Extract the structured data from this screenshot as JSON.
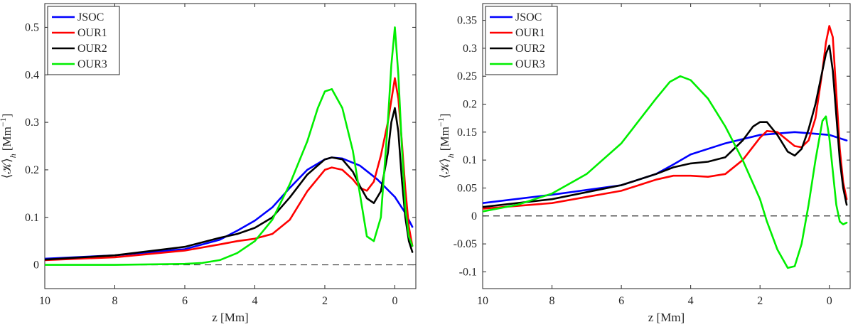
{
  "chart_data": [
    {
      "type": "line",
      "xlabel": "z [Mm]",
      "ylabel": "⟨𝒦⟩",
      "ylabel_sub": "h",
      "ylabel_unit": "[Mm",
      "ylabel_unit_exp": "−1",
      "ylabel_unit_close": "]",
      "xlim": [
        10,
        -0.6
      ],
      "ylim": [
        -0.05,
        0.55
      ],
      "xticks": [
        10,
        8,
        6,
        4,
        2,
        0
      ],
      "xtick_labels": [
        "10",
        "8",
        "6",
        "4",
        "2",
        "0"
      ],
      "yticks": [
        0,
        0.1,
        0.2,
        0.3,
        0.4,
        0.5
      ],
      "ytick_labels": [
        "0",
        "0.1",
        "0.2",
        "0.3",
        "0.4",
        "0.5"
      ],
      "zero_line": true,
      "legend_position": "top-left",
      "series": [
        {
          "name": "JSOC",
          "color": "#0000ff",
          "x": [
            10,
            8,
            6,
            5,
            4.5,
            4,
            3.5,
            3,
            2.5,
            2,
            1.8,
            1.5,
            1,
            0.5,
            0,
            -0.3,
            -0.5
          ],
          "y": [
            0.013,
            0.02,
            0.033,
            0.053,
            0.072,
            0.093,
            0.121,
            0.162,
            0.2,
            0.222,
            0.226,
            0.224,
            0.209,
            0.18,
            0.143,
            0.109,
            0.08
          ]
        },
        {
          "name": "OUR1",
          "color": "#ff0000",
          "x": [
            10,
            8,
            6,
            5,
            4.5,
            4,
            3.5,
            3,
            2.5,
            2,
            1.8,
            1.5,
            1.2,
            1,
            0.8,
            0.6,
            0.4,
            0.2,
            0,
            -0.1,
            -0.2,
            -0.3,
            -0.4,
            -0.5
          ],
          "y": [
            0.01,
            0.016,
            0.03,
            0.043,
            0.05,
            0.055,
            0.065,
            0.095,
            0.155,
            0.2,
            0.205,
            0.2,
            0.18,
            0.162,
            0.156,
            0.175,
            0.23,
            0.3,
            0.393,
            0.35,
            0.26,
            0.16,
            0.08,
            0.04
          ]
        },
        {
          "name": "OUR2",
          "color": "#000000",
          "x": [
            10,
            8,
            6,
            5,
            4.5,
            4,
            3.5,
            3,
            2.5,
            2,
            1.8,
            1.5,
            1.2,
            1,
            0.8,
            0.6,
            0.4,
            0.2,
            0.1,
            0,
            -0.1,
            -0.2,
            -0.3,
            -0.4,
            -0.5
          ],
          "y": [
            0.011,
            0.02,
            0.038,
            0.057,
            0.065,
            0.078,
            0.1,
            0.142,
            0.19,
            0.222,
            0.226,
            0.222,
            0.196,
            0.166,
            0.14,
            0.13,
            0.155,
            0.235,
            0.3,
            0.33,
            0.28,
            0.18,
            0.1,
            0.05,
            0.027
          ]
        },
        {
          "name": "OUR3",
          "color": "#00ee00",
          "x": [
            10,
            8,
            6,
            5.5,
            5,
            4.5,
            4,
            3.5,
            3,
            2.5,
            2.2,
            2,
            1.8,
            1.5,
            1.2,
            1,
            0.8,
            0.6,
            0.4,
            0.2,
            0.1,
            0,
            -0.1,
            -0.2,
            -0.3,
            -0.4,
            -0.5
          ],
          "y": [
            0,
            0,
            0.002,
            0.004,
            0.01,
            0.025,
            0.05,
            0.095,
            0.17,
            0.26,
            0.33,
            0.365,
            0.37,
            0.33,
            0.24,
            0.15,
            0.06,
            0.05,
            0.1,
            0.3,
            0.42,
            0.5,
            0.4,
            0.25,
            0.12,
            0.06,
            0.04
          ]
        }
      ]
    },
    {
      "type": "line",
      "xlabel": "z [Mm]",
      "ylabel": "⟨𝒦⟩",
      "ylabel_sub": "h",
      "ylabel_unit": "[Mm",
      "ylabel_unit_exp": "−1",
      "ylabel_unit_close": "]",
      "xlim": [
        10,
        -0.6
      ],
      "ylim": [
        -0.13,
        0.38
      ],
      "xticks": [
        10,
        8,
        6,
        4,
        2,
        0
      ],
      "xtick_labels": [
        "10",
        "8",
        "6",
        "4",
        "2",
        "0"
      ],
      "yticks": [
        -0.1,
        -0.05,
        0,
        0.05,
        0.1,
        0.15,
        0.2,
        0.25,
        0.3,
        0.35
      ],
      "ytick_labels": [
        "-0.1",
        "-0.05",
        "0",
        "0.05",
        "0.1",
        "0.15",
        "0.2",
        "0.25",
        "0.3",
        "0.35"
      ],
      "zero_line": true,
      "legend_position": "top-left",
      "series": [
        {
          "name": "JSOC",
          "color": "#0000ff",
          "x": [
            10,
            8,
            6,
            5,
            4.5,
            4,
            3,
            2,
            1,
            0,
            -0.5
          ],
          "y": [
            0.023,
            0.038,
            0.055,
            0.075,
            0.092,
            0.11,
            0.13,
            0.145,
            0.15,
            0.145,
            0.135
          ]
        },
        {
          "name": "OUR1",
          "color": "#ff0000",
          "x": [
            10,
            8,
            6,
            5,
            4.5,
            4,
            3.5,
            3,
            2.5,
            2,
            1.8,
            1.5,
            1.2,
            1,
            0.8,
            0.6,
            0.4,
            0.2,
            0.1,
            0,
            -0.1,
            -0.2,
            -0.3,
            -0.4,
            -0.5
          ],
          "y": [
            0.013,
            0.023,
            0.045,
            0.065,
            0.072,
            0.072,
            0.07,
            0.075,
            0.1,
            0.14,
            0.152,
            0.15,
            0.135,
            0.125,
            0.123,
            0.135,
            0.175,
            0.26,
            0.31,
            0.34,
            0.32,
            0.22,
            0.12,
            0.06,
            0.03
          ]
        },
        {
          "name": "OUR2",
          "color": "#000000",
          "x": [
            10,
            8,
            6,
            5,
            4.5,
            4,
            3.5,
            3,
            2.5,
            2.2,
            2,
            1.8,
            1.5,
            1.2,
            1,
            0.8,
            0.6,
            0.4,
            0.2,
            0.1,
            0,
            -0.1,
            -0.2,
            -0.3,
            -0.4,
            -0.5
          ],
          "y": [
            0.016,
            0.03,
            0.055,
            0.075,
            0.087,
            0.094,
            0.097,
            0.105,
            0.135,
            0.16,
            0.168,
            0.168,
            0.145,
            0.115,
            0.108,
            0.12,
            0.155,
            0.2,
            0.26,
            0.29,
            0.305,
            0.26,
            0.18,
            0.1,
            0.05,
            0.02
          ]
        },
        {
          "name": "OUR3",
          "color": "#00ee00",
          "x": [
            10,
            9,
            8,
            7,
            6,
            5.5,
            5,
            4.6,
            4.3,
            4,
            3.5,
            3,
            2.5,
            2,
            1.8,
            1.5,
            1.2,
            1,
            0.8,
            0.6,
            0.4,
            0.2,
            0.1,
            0,
            -0.1,
            -0.2,
            -0.3,
            -0.4,
            -0.5
          ],
          "y": [
            0.008,
            0.02,
            0.04,
            0.075,
            0.13,
            0.17,
            0.21,
            0.24,
            0.25,
            0.243,
            0.21,
            0.16,
            0.1,
            0.03,
            -0.01,
            -0.06,
            -0.093,
            -0.09,
            -0.05,
            0.02,
            0.1,
            0.17,
            0.178,
            0.14,
            0.08,
            0.02,
            -0.01,
            -0.015,
            -0.012
          ]
        }
      ]
    }
  ]
}
